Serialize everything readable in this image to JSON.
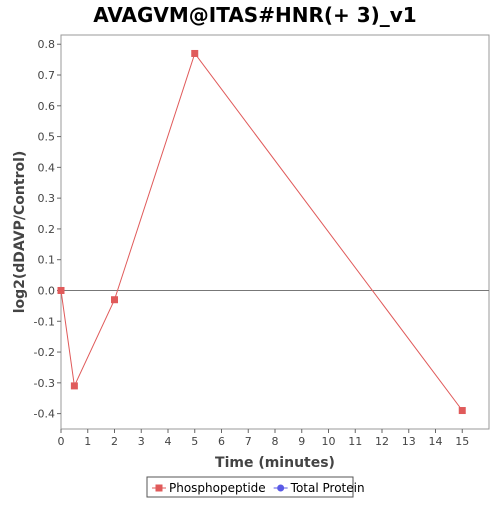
{
  "chart_data": {
    "type": "line",
    "title": "AVAGVM@ITAS#HNR(+ 3)_v1",
    "xlabel": "Time (minutes)",
    "ylabel": "log2(dDAVP/Control)",
    "xlim": [
      0,
      16
    ],
    "ylim": [
      -0.45,
      0.83
    ],
    "x_ticks": [
      0,
      1,
      2,
      3,
      4,
      5,
      6,
      7,
      8,
      9,
      10,
      11,
      12,
      13,
      14,
      15
    ],
    "y_ticks": [
      0.8,
      0.7,
      0.6,
      0.5,
      0.4,
      0.3,
      0.2,
      0.1,
      0.0,
      -0.1,
      -0.2,
      -0.3,
      -0.4
    ],
    "y_tick_labels": [
      "0.8",
      "0.7",
      "0.6",
      "0.5",
      "0.4",
      "0.3",
      "0.2",
      "0.1",
      "0.0",
      "-0.1",
      "-0.2",
      "-0.3",
      "-0.4"
    ],
    "zero_line": true,
    "grid": false,
    "legend_position": "bottom-center",
    "series": [
      {
        "name": "Phosphopeptide",
        "color": "#e05a5a",
        "marker": "square",
        "x": [
          0,
          0.5,
          2,
          5,
          15
        ],
        "y": [
          0.0,
          -0.31,
          -0.03,
          0.77,
          -0.39
        ]
      },
      {
        "name": "Total Protein",
        "color": "#5a5ae6",
        "marker": "circle",
        "x": [],
        "y": []
      }
    ]
  }
}
